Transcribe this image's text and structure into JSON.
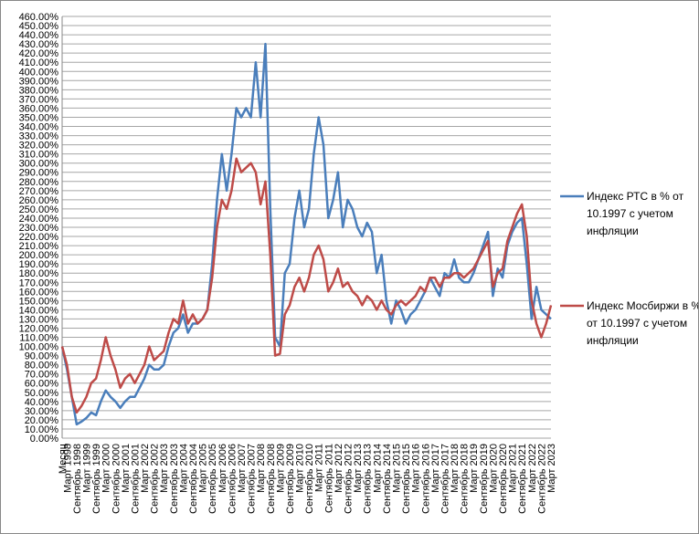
{
  "chart_data": {
    "type": "line",
    "categories": [
      "Месяц",
      "Март 1998",
      null,
      "Сентябрь 1998",
      null,
      "Март 1999",
      null,
      "Сентябрь 1999",
      null,
      "Март 2000",
      null,
      "Сентябрь 2000",
      null,
      "Март 2001",
      null,
      "Сентябрь 2001",
      null,
      "Март 2002",
      null,
      "Сентябрь 2002",
      null,
      "Март 2003",
      null,
      "Сентябрь 2003",
      null,
      "Март 2004",
      null,
      "Сентябрь 2004",
      null,
      "Март 2005",
      null,
      "Сентябрь 2005",
      null,
      "Март 2006",
      null,
      "Сентябрь 2006",
      null,
      "Март 2007",
      null,
      "Сентябрь 2007",
      null,
      "Март 2008",
      null,
      "Сентябрь 2008",
      null,
      "Март 2009",
      null,
      "Сентябрь 2009",
      null,
      "Март 2010",
      null,
      "Сентябрь 2010",
      null,
      "Март 2011",
      null,
      "Сентябрь 2011",
      null,
      "Март 2012",
      null,
      "Сентябрь 2012",
      null,
      "Март 2013",
      null,
      "Сентябрь 2013",
      null,
      "Март 2014",
      null,
      "Сентябрь 2014",
      null,
      "Март 2015",
      null,
      "Сентябрь 2015",
      null,
      "Март 2016",
      null,
      "Сентябрь 2016",
      null,
      "Март 2017",
      null,
      "Сентябрь 2017",
      null,
      "Март 2018",
      null,
      "Сентябрь 2018",
      null,
      "Март 2019",
      null,
      "Сентябрь 2019",
      null,
      "Март 2020",
      null,
      "Сентябрь 2020",
      null,
      "Март 2021",
      null,
      "Сентябрь 2021",
      null,
      "Март 2022",
      null,
      "Сентябрь 2022",
      null,
      "Март 2023"
    ],
    "series": [
      {
        "name": "Индекс  РТС в % от 10.1997 с учетом инфляции",
        "color": "#4a7ebb",
        "values": [
          100,
          75,
          45,
          15,
          18,
          22,
          28,
          25,
          40,
          52,
          45,
          40,
          33,
          40,
          45,
          45,
          55,
          65,
          80,
          75,
          75,
          80,
          100,
          115,
          120,
          135,
          115,
          125,
          125,
          130,
          140,
          190,
          260,
          310,
          270,
          310,
          360,
          350,
          360,
          350,
          410,
          350,
          430,
          250,
          110,
          100,
          180,
          190,
          240,
          270,
          230,
          250,
          310,
          350,
          320,
          240,
          260,
          290,
          230,
          260,
          250,
          230,
          220,
          235,
          225,
          180,
          200,
          150,
          125,
          150,
          140,
          125,
          135,
          140,
          150,
          160,
          175,
          165,
          155,
          180,
          175,
          195,
          175,
          170,
          170,
          180,
          195,
          210,
          225,
          155,
          185,
          175,
          210,
          225,
          235,
          240,
          190,
          130,
          165,
          140,
          135,
          130
        ]
      },
      {
        "name": "Индекс  Мосбиржи в % от 10.1997 с учетом инфляции",
        "color": "#be4b48",
        "values": [
          100,
          80,
          45,
          28,
          35,
          45,
          60,
          65,
          85,
          110,
          90,
          75,
          55,
          65,
          70,
          60,
          70,
          80,
          100,
          85,
          90,
          95,
          115,
          130,
          125,
          150,
          125,
          135,
          125,
          130,
          140,
          175,
          230,
          260,
          250,
          270,
          305,
          290,
          295,
          300,
          290,
          255,
          280,
          200,
          90,
          92,
          135,
          145,
          165,
          175,
          160,
          175,
          200,
          210,
          195,
          160,
          170,
          185,
          165,
          170,
          160,
          155,
          145,
          155,
          150,
          140,
          150,
          140,
          135,
          145,
          150,
          145,
          150,
          155,
          165,
          160,
          175,
          175,
          165,
          175,
          175,
          180,
          180,
          175,
          180,
          185,
          195,
          205,
          215,
          165,
          180,
          185,
          215,
          230,
          245,
          255,
          220,
          150,
          125,
          110,
          125,
          145
        ]
      }
    ],
    "ylim": [
      0,
      460
    ],
    "yticks": [
      {
        "value": 0,
        "label": "0.00%"
      },
      {
        "value": 10,
        "label": "10.00%"
      },
      {
        "value": 20,
        "label": "20.00%"
      },
      {
        "value": 30,
        "label": "30.00%"
      },
      {
        "value": 40,
        "label": "40.00%"
      },
      {
        "value": 50,
        "label": "50.00%"
      },
      {
        "value": 60,
        "label": "60.00%"
      },
      {
        "value": 70,
        "label": "70.00%"
      },
      {
        "value": 80,
        "label": "80.00%"
      },
      {
        "value": 90,
        "label": "90.00%"
      },
      {
        "value": 100,
        "label": "100.00%"
      },
      {
        "value": 110,
        "label": "110.00%"
      },
      {
        "value": 120,
        "label": "120.00%"
      },
      {
        "value": 130,
        "label": "130.00%"
      },
      {
        "value": 140,
        "label": "140.00%"
      },
      {
        "value": 150,
        "label": "150.00%"
      },
      {
        "value": 160,
        "label": "160.00%"
      },
      {
        "value": 170,
        "label": "170.00%"
      },
      {
        "value": 180,
        "label": "180.00%"
      },
      {
        "value": 190,
        "label": "190.00%"
      },
      {
        "value": 200,
        "label": "200.00%"
      },
      {
        "value": 210,
        "label": "210.00%"
      },
      {
        "value": 220,
        "label": "220.00%"
      },
      {
        "value": 230,
        "label": "230.00%"
      },
      {
        "value": 240,
        "label": "240.00%"
      },
      {
        "value": 250,
        "label": "250.00%"
      },
      {
        "value": 260,
        "label": "260.00%"
      },
      {
        "value": 270,
        "label": "270.00%"
      },
      {
        "value": 280,
        "label": "280.00%"
      },
      {
        "value": 290,
        "label": "290.00%"
      },
      {
        "value": 300,
        "label": "300.00%"
      },
      {
        "value": 310,
        "label": "310.00%"
      },
      {
        "value": 320,
        "label": "320.00%"
      },
      {
        "value": 330,
        "label": "330.00%"
      },
      {
        "value": 340,
        "label": "340.00%"
      },
      {
        "value": 350,
        "label": "350.00%"
      },
      {
        "value": 360,
        "label": "360.00%"
      },
      {
        "value": 370,
        "label": "370.00%"
      },
      {
        "value": 380,
        "label": "380.00%"
      },
      {
        "value": 390,
        "label": "390.00%"
      },
      {
        "value": 400,
        "label": "400.00%"
      },
      {
        "value": 410,
        "label": "410.00%"
      },
      {
        "value": 420,
        "label": "420.00%"
      },
      {
        "value": 430,
        "label": "430.00%"
      },
      {
        "value": 440,
        "label": "440.00%"
      },
      {
        "value": 450,
        "label": "450.00%"
      },
      {
        "value": 460,
        "label": "460.00%"
      }
    ],
    "grid": true,
    "legend": "right"
  }
}
